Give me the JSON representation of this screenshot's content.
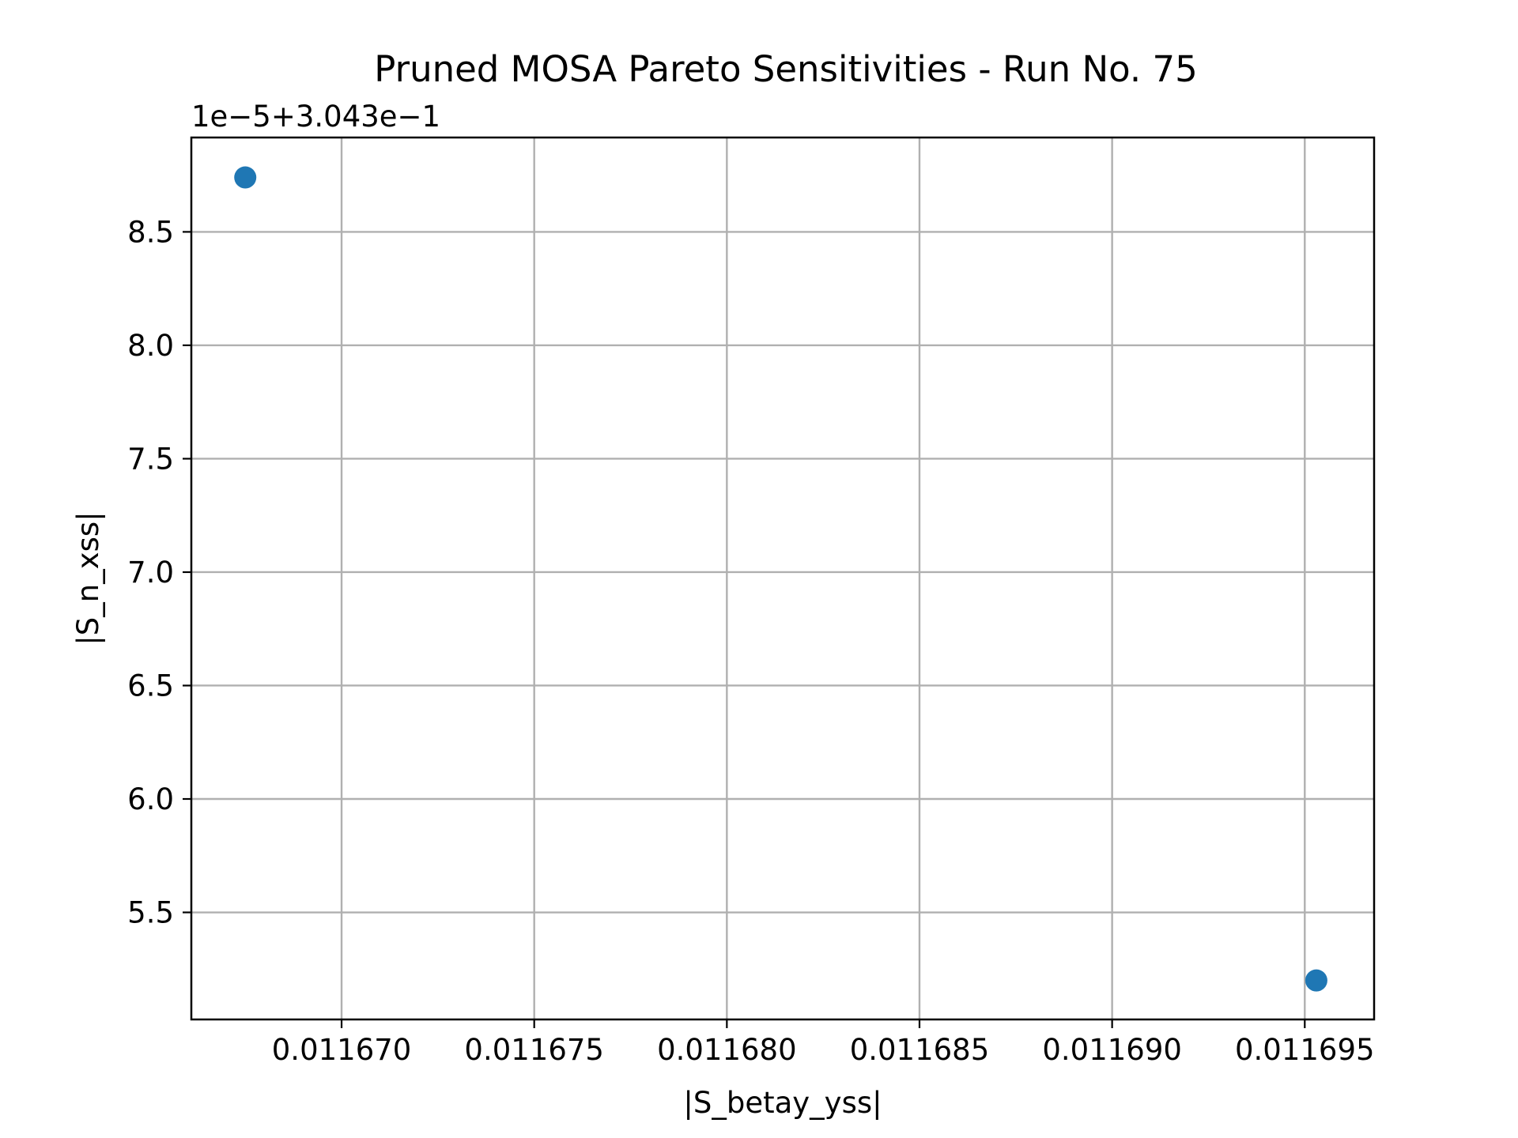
{
  "chart_data": {
    "type": "scatter",
    "title": "Pruned MOSA Pareto Sensitivities - Run No. 75",
    "xlabel": "|S_betay_yss|",
    "ylabel": "|S_n_xss|",
    "y_offset_label": "1e−5+3.043e−1",
    "xlim": [
      0.0116661,
      0.0116968
    ],
    "ylim": [
      5.028,
      8.916
    ],
    "xticks": [
      0.01167,
      0.011675,
      0.01168,
      0.011685,
      0.01169,
      0.011695
    ],
    "xtick_labels": [
      "0.011670",
      "0.011675",
      "0.011680",
      "0.011685",
      "0.011690",
      "0.011695"
    ],
    "yticks": [
      5.5,
      6.0,
      6.5,
      7.0,
      7.5,
      8.0,
      8.5
    ],
    "ytick_labels": [
      "5.5",
      "6.0",
      "6.5",
      "7.0",
      "7.5",
      "8.0",
      "8.5"
    ],
    "grid": true,
    "series": [
      {
        "points": [
          {
            "x": 0.0116675,
            "y": 8.74
          },
          {
            "x": 0.0116953,
            "y": 5.2
          }
        ],
        "color": "#1f77b4"
      }
    ]
  }
}
